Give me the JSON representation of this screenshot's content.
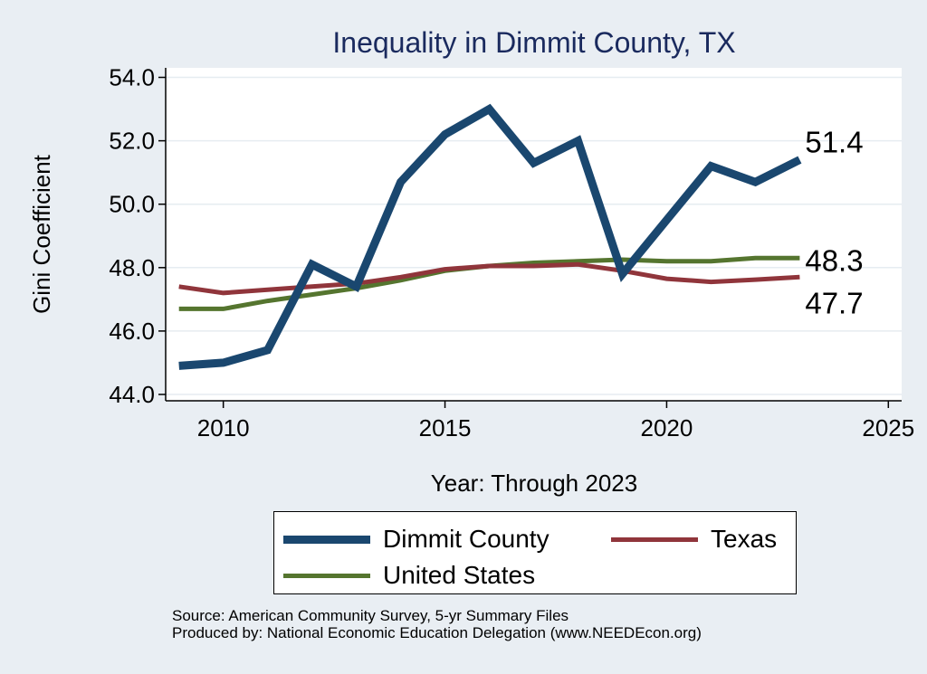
{
  "chart_data": {
    "type": "line",
    "title": "Inequality in Dimmit County, TX",
    "xlabel": "Year: Through 2023",
    "ylabel": "Gini Coefficient",
    "xlim": [
      2008.7,
      2025.3
    ],
    "ylim": [
      43.8,
      54.3
    ],
    "xticks": [
      2010,
      2015,
      2020,
      2025
    ],
    "yticks": [
      44.0,
      46.0,
      48.0,
      50.0,
      52.0,
      54.0
    ],
    "ytick_labels": [
      "44.0",
      "46.0",
      "48.0",
      "50.0",
      "52.0",
      "54.0"
    ],
    "x": [
      2009,
      2010,
      2011,
      2012,
      2013,
      2014,
      2015,
      2016,
      2017,
      2018,
      2019,
      2020,
      2021,
      2022,
      2023
    ],
    "series": [
      {
        "name": "Dimmit County",
        "color": "#1a476f",
        "values": [
          44.9,
          45.0,
          45.4,
          48.1,
          47.4,
          50.7,
          52.2,
          53.0,
          51.3,
          52.0,
          47.8,
          49.5,
          51.2,
          50.7,
          51.4
        ],
        "end_label": "51.4"
      },
      {
        "name": "Texas",
        "color": "#90353b",
        "values": [
          47.4,
          47.2,
          47.3,
          47.4,
          47.5,
          47.7,
          47.95,
          48.05,
          48.05,
          48.1,
          47.9,
          47.65,
          47.55,
          47.62,
          47.7
        ],
        "end_label": "47.7"
      },
      {
        "name": "United States",
        "color": "#55752f",
        "values": [
          46.7,
          46.7,
          46.95,
          47.15,
          47.35,
          47.6,
          47.9,
          48.05,
          48.15,
          48.2,
          48.25,
          48.2,
          48.2,
          48.3,
          48.3
        ],
        "end_label": "48.3"
      }
    ],
    "grid": true,
    "legend_placement": "bottom"
  },
  "source": {
    "line1": "Source: American Community Survey, 5-yr Summary Files",
    "line2": "Produced by: National Economic Education Delegation (www.NEEDEcon.org)"
  }
}
